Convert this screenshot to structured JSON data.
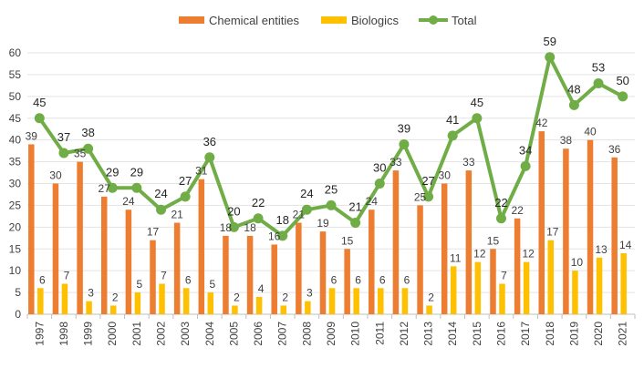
{
  "chart_data": {
    "type": "bar",
    "categories": [
      "1997",
      "1998",
      "1999",
      "2000",
      "2001",
      "2002",
      "2003",
      "2004",
      "2005",
      "2006",
      "2007",
      "2008",
      "2009",
      "2010",
      "2011",
      "2012",
      "2013",
      "2014",
      "2015",
      "2016",
      "2017",
      "2018",
      "2019",
      "2020",
      "2021"
    ],
    "series": [
      {
        "name": "Chemical entities",
        "type": "bar",
        "color": "#ED7D31",
        "values": [
          39,
          30,
          35,
          27,
          24,
          17,
          21,
          31,
          18,
          18,
          16,
          21,
          19,
          15,
          24,
          33,
          25,
          30,
          33,
          15,
          22,
          42,
          38,
          40,
          36
        ]
      },
      {
        "name": "Biologics",
        "type": "bar",
        "color": "#FFC000",
        "values": [
          6,
          7,
          3,
          2,
          5,
          7,
          6,
          5,
          2,
          4,
          2,
          3,
          6,
          6,
          6,
          6,
          2,
          11,
          12,
          7,
          12,
          17,
          10,
          13,
          14
        ]
      },
      {
        "name": "Total",
        "type": "line",
        "color": "#70AD47",
        "values": [
          45,
          37,
          38,
          29,
          29,
          24,
          27,
          36,
          20,
          22,
          18,
          24,
          25,
          21,
          30,
          39,
          27,
          41,
          45,
          22,
          34,
          59,
          48,
          53,
          50
        ]
      }
    ],
    "y_ticks": [
      0,
      5,
      10,
      15,
      20,
      25,
      30,
      35,
      40,
      45,
      50,
      55,
      60
    ],
    "ylim": [
      0,
      60
    ],
    "grid": true,
    "legend_position": "top"
  }
}
